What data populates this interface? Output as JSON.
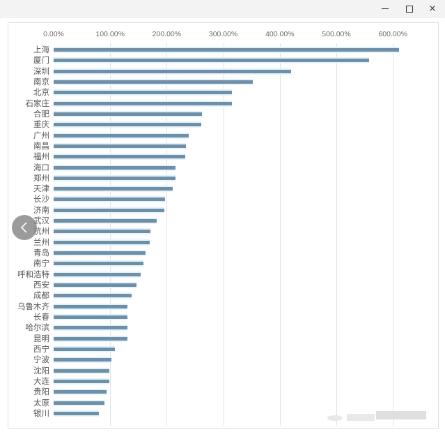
{
  "window": {
    "controls": {
      "minimize": "minimize",
      "maximize": "maximize",
      "close": "×"
    }
  },
  "navigation": {
    "prev_icon": "chevron-left-icon"
  },
  "colors": {
    "bar": "#6f8fa9",
    "bar_glow": "#dff2f8",
    "grid": "#dde3e8",
    "titlebar": "#f3f3f3"
  },
  "axis": {
    "ticks": [
      "0.00%",
      "100.00%",
      "200.00%",
      "300.00%",
      "400.00%",
      "500.00%",
      "600.00%"
    ]
  },
  "chart_data": {
    "type": "bar",
    "orientation": "horizontal",
    "title": "",
    "xlabel": "",
    "ylabel": "",
    "xlim": [
      0,
      6.2
    ],
    "x_tick_labels": [
      "0.00%",
      "100.00%",
      "200.00%",
      "300.00%",
      "400.00%",
      "500.00%",
      "600.00%"
    ],
    "grid": true,
    "legend": null,
    "categories": [
      "上海",
      "厦门",
      "深圳",
      "南京",
      "北京",
      "石家庄",
      "合肥",
      "重庆",
      "广州",
      "南昌",
      "福州",
      "海口",
      "郑州",
      "天津",
      "长沙",
      "济南",
      "武汉",
      "杭州",
      "兰州",
      "青岛",
      "南宁",
      "呼和浩特",
      "西安",
      "成都",
      "乌鲁木齐",
      "长春",
      "哈尔滨",
      "昆明",
      "西宁",
      "宁波",
      "沈阳",
      "大连",
      "贵阳",
      "太原",
      "银川"
    ],
    "values": [
      6.11,
      5.58,
      4.2,
      3.52,
      3.15,
      3.15,
      2.62,
      2.61,
      2.39,
      2.34,
      2.33,
      2.16,
      2.15,
      2.1,
      1.97,
      1.96,
      1.82,
      1.71,
      1.7,
      1.63,
      1.59,
      1.54,
      1.47,
      1.38,
      1.31,
      1.31,
      1.3,
      1.3,
      1.08,
      1.02,
      0.98,
      0.98,
      0.94,
      0.9,
      0.8
    ],
    "value_format": "percent"
  }
}
